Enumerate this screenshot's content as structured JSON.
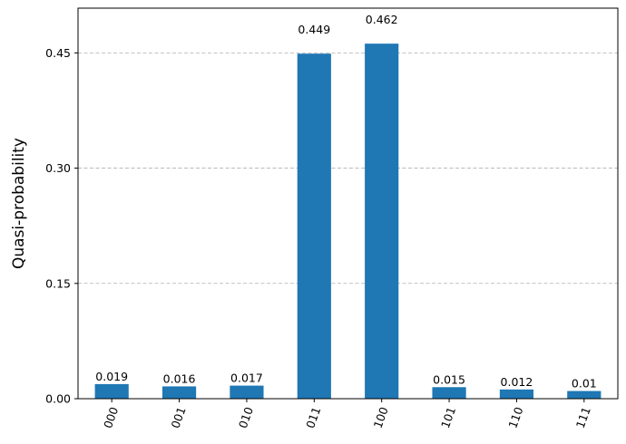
{
  "chart_data": {
    "type": "bar",
    "title": "",
    "xlabel": "",
    "ylabel": "Quasi-probability",
    "categories": [
      "000",
      "001",
      "010",
      "011",
      "100",
      "101",
      "110",
      "111"
    ],
    "values": [
      0.019,
      0.016,
      0.017,
      0.449,
      0.462,
      0.015,
      0.012,
      0.01
    ],
    "value_labels": [
      "0.019",
      "0.016",
      "0.017",
      "0.449",
      "0.462",
      "0.015",
      "0.012",
      "0.01"
    ],
    "ylim": [
      0,
      0.5082
    ],
    "yticks": [
      0.0,
      0.15,
      0.3,
      0.45
    ],
    "ytick_labels": [
      "0.00",
      "0.15",
      "0.30",
      "0.45"
    ],
    "grid": "y-dashed",
    "xtick_rotation": 70,
    "colors": {
      "bar": "#1f77b4",
      "grid": "#b0b0b0",
      "axis": "#000000"
    }
  }
}
